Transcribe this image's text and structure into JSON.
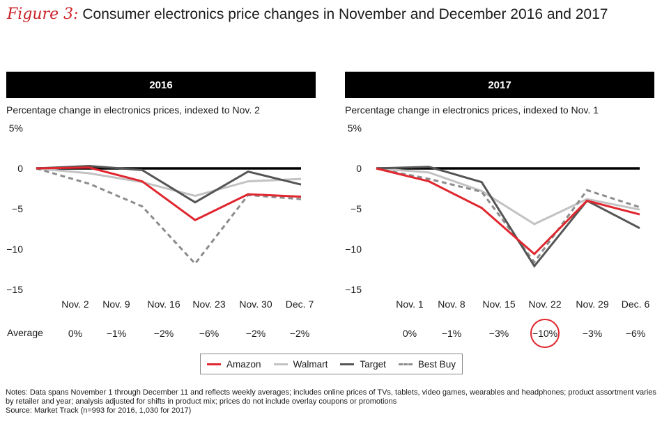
{
  "figure": {
    "label": "Figure 3:",
    "title": "Consumer electronics price changes in November and December 2016 and 2017"
  },
  "average_label": "Average",
  "legend": [
    {
      "name": "Amazon",
      "color": "#e0262e",
      "dashed": false
    },
    {
      "name": "Walmart",
      "color": "#c2c2c2",
      "dashed": false
    },
    {
      "name": "Target",
      "color": "#555555",
      "dashed": false
    },
    {
      "name": "Best Buy",
      "color": "#8c8c8c",
      "dashed": true
    }
  ],
  "notes": {
    "line1": "Notes: Data spans November 1 through December 11 and reflects weekly averages; includes online prices of TVs, tablets, video games, wearables and headphones; product assortment varies by retailer and year; analysis adjusted for shifts in product mix; prices do not include overlay coupons or promotions",
    "line2": "Source: Market Track (n=993 for 2016, 1,030 for 2017)"
  },
  "chart_data": [
    {
      "type": "line",
      "title": "2016",
      "ylabel": "Percentage change in electronics prices, indexed to Nov. 2",
      "ylim": [
        -15,
        5
      ],
      "y_ticks": [
        "5%",
        "0",
        "−5",
        "−10",
        "−15"
      ],
      "categories": [
        "Nov. 2",
        "Nov. 9",
        "Nov. 16",
        "Nov. 23",
        "Nov. 30",
        "Dec. 7"
      ],
      "averages": [
        "0%",
        "−1%",
        "−2%",
        "−6%",
        "−2%",
        "−2%"
      ],
      "highlight_index": -1,
      "series": [
        {
          "name": "Amazon",
          "values": [
            0,
            0.1,
            -1.6,
            -6.4,
            -3.2,
            -3.5
          ]
        },
        {
          "name": "Walmart",
          "values": [
            0,
            -0.6,
            -1.7,
            -3.4,
            -1.6,
            -1.3
          ]
        },
        {
          "name": "Target",
          "values": [
            0,
            0.3,
            -0.2,
            -4.2,
            -0.4,
            -2.0
          ]
        },
        {
          "name": "Best Buy",
          "values": [
            0,
            -1.9,
            -4.7,
            -11.8,
            -3.3,
            -3.8
          ]
        }
      ]
    },
    {
      "type": "line",
      "title": "2017",
      "ylabel": "Percentage change in electronics prices, indexed to Nov. 1",
      "ylim": [
        -15,
        5
      ],
      "y_ticks": [
        "5%",
        "0",
        "−5",
        "−10",
        "−15"
      ],
      "categories": [
        "Nov. 1",
        "Nov. 8",
        "Nov. 15",
        "Nov. 22",
        "Nov. 29",
        "Dec. 6"
      ],
      "averages": [
        "0%",
        "−1%",
        "−3%",
        "−10%",
        "−3%",
        "−6%"
      ],
      "highlight_index": 3,
      "series": [
        {
          "name": "Amazon",
          "values": [
            0,
            -1.6,
            -4.9,
            -10.6,
            -4.0,
            -5.7
          ]
        },
        {
          "name": "Walmart",
          "values": [
            0,
            -0.5,
            -2.8,
            -6.9,
            -3.8,
            -5.1
          ]
        },
        {
          "name": "Target",
          "values": [
            0,
            0.2,
            -1.7,
            -12.1,
            -4.0,
            -7.4
          ]
        },
        {
          "name": "Best Buy",
          "values": [
            0,
            -1.3,
            -2.9,
            -11.6,
            -2.7,
            -4.8
          ]
        }
      ]
    }
  ]
}
